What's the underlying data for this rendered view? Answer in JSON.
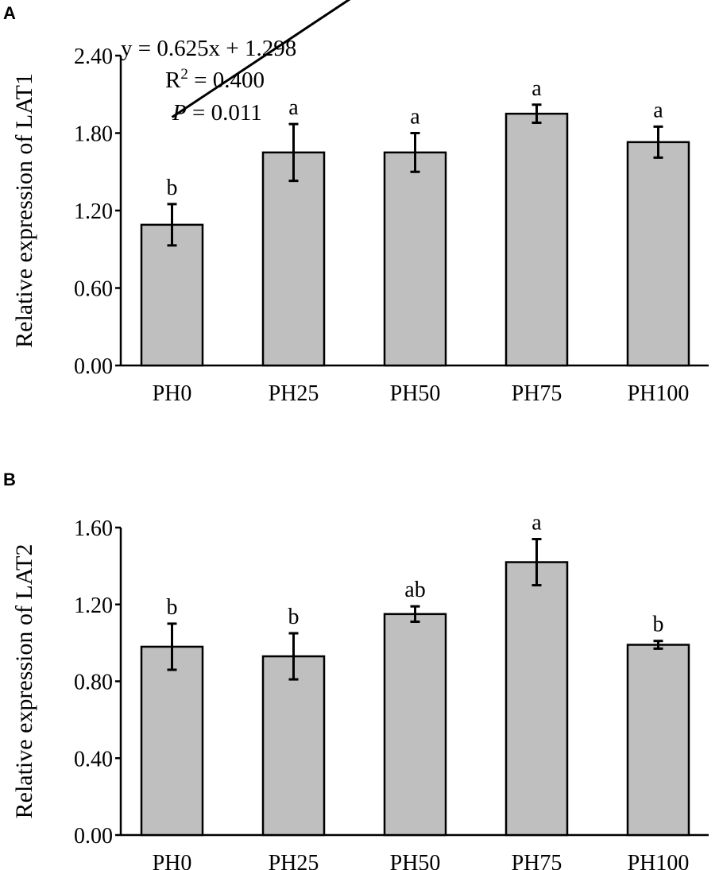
{
  "chart_data": [
    {
      "type": "bar",
      "panel_label": "A",
      "categories": [
        "PH0",
        "PH25",
        "PH50",
        "PH75",
        "PH100"
      ],
      "values": [
        1.09,
        1.65,
        1.65,
        1.95,
        1.73
      ],
      "errors": [
        0.16,
        0.22,
        0.15,
        0.07,
        0.12
      ],
      "significance": [
        "b",
        "a",
        "a",
        "a",
        "a"
      ],
      "ylabel": "Relative expression of LAT1",
      "ylim": [
        0,
        2.4
      ],
      "yticks": [
        "0.00",
        "0.60",
        "1.20",
        "1.80",
        "2.40"
      ],
      "trendline": {
        "slope": 0.625,
        "intercept": 1.298
      },
      "equation": {
        "line1": "y = 0.625x + 1.298",
        "r2_prefix": "R",
        "r2_sup": "2",
        "r2_suffix": " = 0.400",
        "p_italic": "P",
        "p_suffix": " = 0.011"
      }
    },
    {
      "type": "bar",
      "panel_label": "B",
      "categories": [
        "PH0",
        "PH25",
        "PH50",
        "PH75",
        "PH100"
      ],
      "values": [
        0.98,
        0.93,
        1.15,
        1.42,
        0.99
      ],
      "errors": [
        0.12,
        0.12,
        0.04,
        0.12,
        0.02
      ],
      "significance": [
        "b",
        "b",
        "ab",
        "a",
        "b"
      ],
      "ylabel": "Relative expression of LAT2",
      "ylim": [
        0,
        1.6
      ],
      "yticks": [
        "0.00",
        "0.40",
        "0.80",
        "1.20",
        "1.60"
      ]
    }
  ]
}
